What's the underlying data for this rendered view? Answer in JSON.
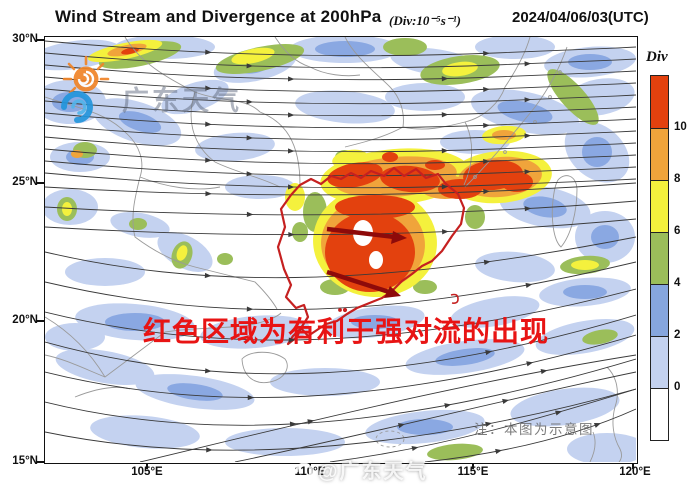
{
  "header": {
    "title": "Wind Stream and Divergence at 200hPa",
    "units": "(Div:10⁻⁵s⁻¹)",
    "datetime": "2024/04/06/03(UTC)"
  },
  "map": {
    "lat_labels": [
      "30°N",
      "25°N",
      "20°N",
      "15°N"
    ],
    "lon_labels": [
      "105°E",
      "110°E",
      "115°E",
      "120°E"
    ],
    "annotation": "红色区域为有利于强对流的出现",
    "note": "注：本图为示意图"
  },
  "colorbar": {
    "title": "Div",
    "tick_labels": [
      "10",
      "8",
      "6",
      "4",
      "2",
      "0"
    ],
    "colors": [
      "#e3410e",
      "#f0a43b",
      "#f4f13d",
      "#9bbe5a",
      "#86a6de",
      "#c4d2f0",
      "#ffffff"
    ]
  },
  "watermark": {
    "logo_text": "广东天气",
    "footer_text": "@广东天气"
  }
}
